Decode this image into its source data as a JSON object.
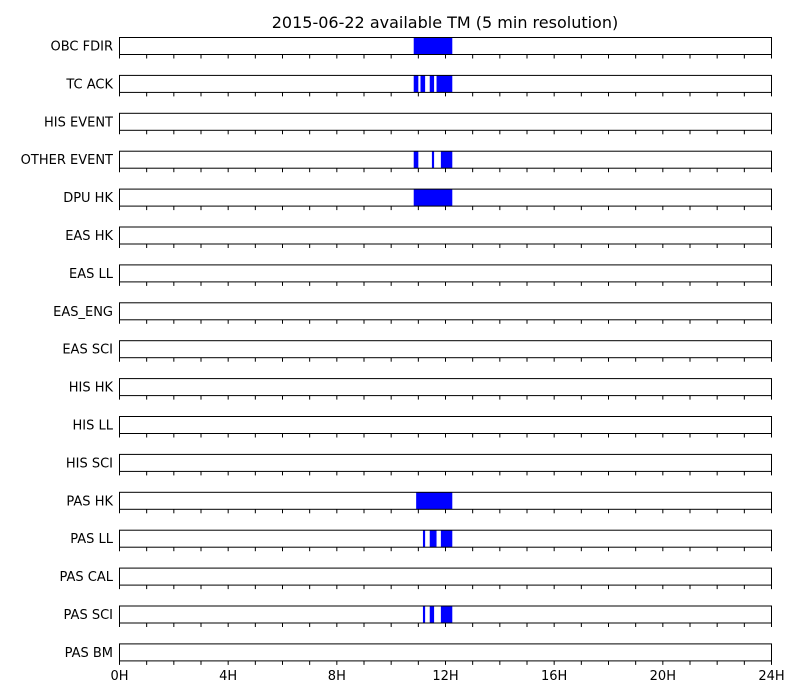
{
  "chart_data": {
    "type": "timeline",
    "title": "2015-06-22 available TM (5 min resolution)",
    "x_unit": "hours",
    "xlim": [
      0,
      24
    ],
    "x_ticks": [
      {
        "value": 0,
        "label": "0H"
      },
      {
        "value": 4,
        "label": "4H"
      },
      {
        "value": 8,
        "label": "8H"
      },
      {
        "value": 12,
        "label": "12H"
      },
      {
        "value": 16,
        "label": "16H"
      },
      {
        "value": 20,
        "label": "20H"
      },
      {
        "value": 24,
        "label": "24H"
      }
    ],
    "minor_tick_step": 1,
    "bar_color": "#0000ff",
    "rows": [
      {
        "name": "OBC FDIR",
        "segments": [
          [
            10.83,
            12.25
          ]
        ]
      },
      {
        "name": "TC ACK",
        "segments": [
          [
            10.83,
            11.0
          ],
          [
            11.08,
            11.25
          ],
          [
            11.42,
            11.58
          ],
          [
            11.67,
            12.25
          ]
        ]
      },
      {
        "name": "HIS EVENT",
        "segments": []
      },
      {
        "name": "OTHER EVENT",
        "segments": [
          [
            10.83,
            11.0
          ],
          [
            11.5,
            11.58
          ],
          [
            11.83,
            12.25
          ]
        ]
      },
      {
        "name": "DPU HK",
        "segments": [
          [
            10.83,
            12.25
          ]
        ]
      },
      {
        "name": "EAS HK",
        "segments": []
      },
      {
        "name": "EAS LL",
        "segments": []
      },
      {
        "name": "EAS_ENG",
        "segments": []
      },
      {
        "name": "EAS SCI",
        "segments": []
      },
      {
        "name": "HIS HK",
        "segments": []
      },
      {
        "name": "HIS LL",
        "segments": []
      },
      {
        "name": "HIS SCI",
        "segments": []
      },
      {
        "name": "PAS HK",
        "segments": [
          [
            10.92,
            12.25
          ]
        ]
      },
      {
        "name": "PAS LL",
        "segments": [
          [
            11.17,
            11.25
          ],
          [
            11.42,
            11.67
          ],
          [
            11.83,
            12.25
          ]
        ]
      },
      {
        "name": "PAS CAL",
        "segments": []
      },
      {
        "name": "PAS SCI",
        "segments": [
          [
            11.17,
            11.25
          ],
          [
            11.42,
            11.58
          ],
          [
            11.83,
            12.25
          ]
        ]
      },
      {
        "name": "PAS BM",
        "segments": []
      }
    ]
  }
}
